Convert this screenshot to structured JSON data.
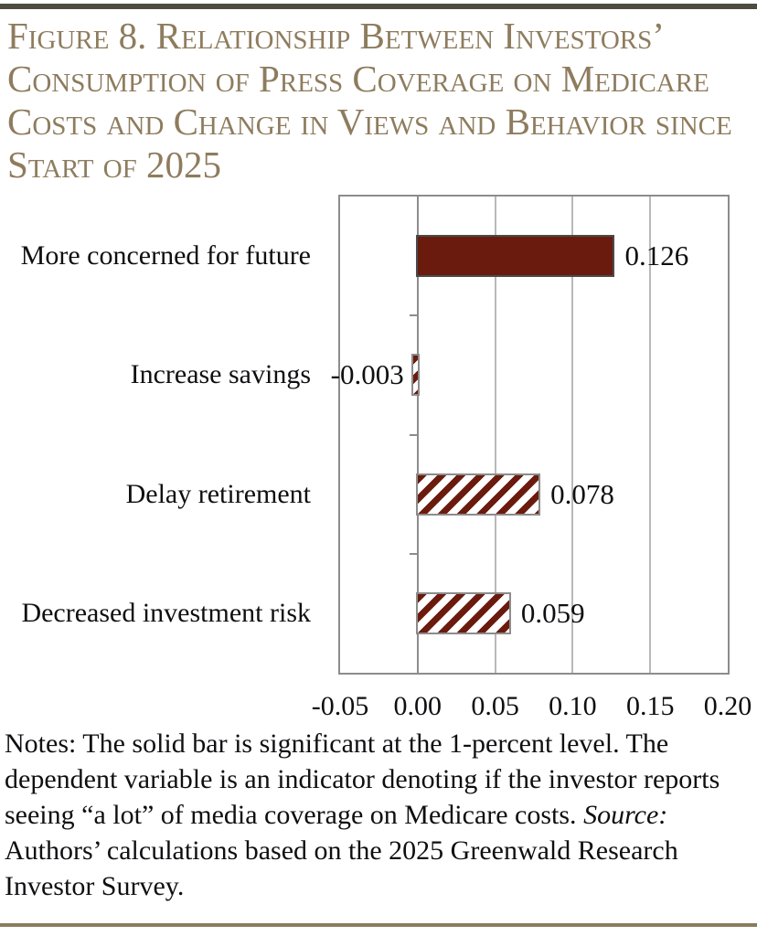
{
  "figure": {
    "title": "Figure 8. Relationship Between Investors’ Consumption of Press Coverage on Medicare Costs and Change in Views and Behavior since Start of 2025"
  },
  "chart_data": {
    "type": "bar",
    "orientation": "horizontal",
    "title": "",
    "xlabel": "",
    "ylabel": "",
    "categories": [
      "More concerned for future",
      "Increase savings",
      "Delay retirement",
      "Decreased investment risk"
    ],
    "values": [
      0.126,
      -0.003,
      0.078,
      0.059
    ],
    "value_labels": [
      "0.126",
      "-0.003",
      "0.078",
      "0.059"
    ],
    "bar_styles": [
      "solid",
      "hatched",
      "hatched",
      "hatched"
    ],
    "xlim": [
      -0.05,
      0.2
    ],
    "x_ticks": [
      -0.05,
      0.0,
      0.05,
      0.1,
      0.15,
      0.2
    ],
    "x_tick_labels": [
      "-0.05",
      "0.00",
      "0.05",
      "0.10",
      "0.15",
      "0.20"
    ],
    "grid": "vertical gridlines on",
    "legend_position": "none",
    "annotation": "solid bar = significant at 1-percent level; hatched bars = not significant"
  },
  "notes": {
    "body": "Notes: The solid bar is significant at the 1-percent level. The dependent variable is an indicator denoting if the investor reports seeing “a lot” of media coverage on Medicare costs. ",
    "source_label": "Source:",
    "source_rest": " Authors’ calculations based on the 2025 Greenwald Research Investor Survey."
  },
  "colors": {
    "bar_maroon": "#6b1b0e",
    "title_tan": "#8e7c5e",
    "top_rule": "#4e4b40",
    "bottom_rule": "#8c7c5c",
    "gridline_gray": "#b9b9b9",
    "axis_gray": "#8c8c8c",
    "text_black": "#0f0f12"
  }
}
